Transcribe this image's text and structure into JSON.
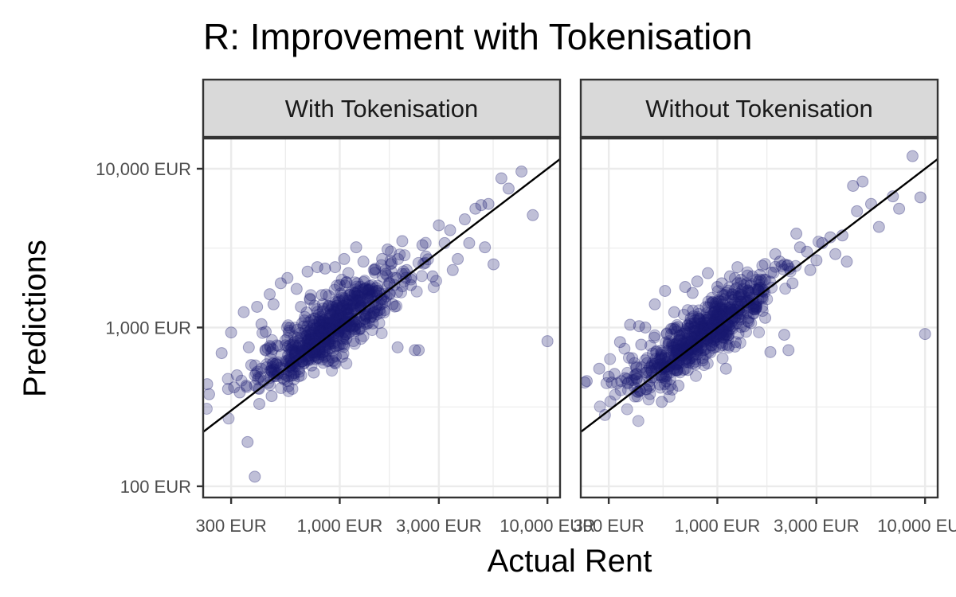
{
  "chart_data": {
    "type": "scatter",
    "title": "R: Improvement with Tokenisation",
    "xlabel": "Actual Rent",
    "ylabel": "Predictions",
    "scale": "log10",
    "xlim": [
      220,
      11500
    ],
    "ylim": [
      85,
      15500
    ],
    "x_ticks": [
      300,
      1000,
      3000,
      10000
    ],
    "x_tick_labels": [
      "300 EUR",
      "1,000 EUR",
      "3,000 EUR",
      "10,000 EUR"
    ],
    "y_ticks": [
      100,
      1000,
      10000
    ],
    "y_tick_labels": [
      "100 EUR",
      "1,000 EUR",
      "10,000 EUR"
    ],
    "reference_line": "y = x",
    "grid": true,
    "colors": {
      "point": "#191970",
      "line": "#000000",
      "strip": "#d9d9d9",
      "grid": "#ebebeb"
    },
    "panels": [
      {
        "name": "With Tokenisation",
        "points": [
          [
            230,
            440
          ],
          [
            235,
            380
          ],
          [
            270,
            690
          ],
          [
            290,
            410
          ],
          [
            300,
            930
          ],
          [
            310,
            420
          ],
          [
            320,
            500
          ],
          [
            330,
            390
          ],
          [
            345,
            1250
          ],
          [
            355,
            430
          ],
          [
            360,
            190
          ],
          [
            365,
            750
          ],
          [
            375,
            580
          ],
          [
            390,
            115
          ],
          [
            400,
            1350
          ],
          [
            410,
            330
          ],
          [
            420,
            1050
          ],
          [
            430,
            460
          ],
          [
            440,
            940
          ],
          [
            460,
            1620
          ],
          [
            470,
            370
          ],
          [
            480,
            1400
          ],
          [
            500,
            580
          ],
          [
            520,
            1900
          ],
          [
            540,
            470
          ],
          [
            560,
            2050
          ],
          [
            600,
            500
          ],
          [
            620,
            1750
          ],
          [
            650,
            1350
          ],
          [
            700,
            2250
          ],
          [
            720,
            1500
          ],
          [
            750,
            520
          ],
          [
            780,
            2400
          ],
          [
            820,
            1600
          ],
          [
            850,
            2350
          ],
          [
            880,
            780
          ],
          [
            950,
            2400
          ],
          [
            1000,
            1850
          ],
          [
            1050,
            2700
          ],
          [
            1100,
            2200
          ],
          [
            1150,
            1000
          ],
          [
            1200,
            3200
          ],
          [
            1300,
            2600
          ],
          [
            1400,
            1150
          ],
          [
            1500,
            1700
          ],
          [
            1600,
            2700
          ],
          [
            1700,
            3100
          ],
          [
            1800,
            1400
          ],
          [
            1900,
            750
          ],
          [
            2000,
            3500
          ],
          [
            2100,
            2300
          ],
          [
            2200,
            1850
          ],
          [
            2300,
            720
          ],
          [
            2400,
            720
          ],
          [
            2500,
            3300
          ],
          [
            2600,
            2800
          ],
          [
            2800,
            2100
          ],
          [
            3000,
            4400
          ],
          [
            3200,
            3400
          ],
          [
            3400,
            4100
          ],
          [
            3500,
            2300
          ],
          [
            3700,
            2700
          ],
          [
            4000,
            4800
          ],
          [
            4200,
            3400
          ],
          [
            4500,
            5600
          ],
          [
            4800,
            5900
          ],
          [
            5000,
            3200
          ],
          [
            5200,
            6000
          ],
          [
            5500,
            2500
          ],
          [
            6000,
            8700
          ],
          [
            6500,
            7500
          ],
          [
            7500,
            9600
          ],
          [
            8500,
            5100
          ],
          [
            10000,
            820
          ]
        ],
        "cloud_center": [
          900,
          1000
        ],
        "cloud_spread": [
          0.17,
          0.13
        ]
      },
      {
        "name": "Without Tokenisation",
        "points": [
          [
            230,
            450
          ],
          [
            235,
            460
          ],
          [
            270,
            550
          ],
          [
            300,
            490
          ],
          [
            310,
            450
          ],
          [
            320,
            510
          ],
          [
            340,
            810
          ],
          [
            360,
            480
          ],
          [
            380,
            1040
          ],
          [
            400,
            500
          ],
          [
            420,
            1020
          ],
          [
            430,
            780
          ],
          [
            450,
            1000
          ],
          [
            470,
            430
          ],
          [
            500,
            1400
          ],
          [
            520,
            580
          ],
          [
            540,
            340
          ],
          [
            560,
            1700
          ],
          [
            600,
            980
          ],
          [
            620,
            1250
          ],
          [
            650,
            430
          ],
          [
            700,
            1800
          ],
          [
            720,
            540
          ],
          [
            760,
            1650
          ],
          [
            800,
            1950
          ],
          [
            850,
            620
          ],
          [
            900,
            2200
          ],
          [
            950,
            1450
          ],
          [
            1000,
            1800
          ],
          [
            1050,
            1900
          ],
          [
            1100,
            550
          ],
          [
            1150,
            2100
          ],
          [
            1250,
            2400
          ],
          [
            1300,
            2000
          ],
          [
            1400,
            1100
          ],
          [
            1500,
            1350
          ],
          [
            1600,
            2150
          ],
          [
            1700,
            1150
          ],
          [
            1800,
            700
          ],
          [
            1900,
            2900
          ],
          [
            2000,
            2600
          ],
          [
            2100,
            900
          ],
          [
            2200,
            720
          ],
          [
            2300,
            1900
          ],
          [
            2400,
            3900
          ],
          [
            2500,
            3200
          ],
          [
            2700,
            3000
          ],
          [
            2800,
            2300
          ],
          [
            3000,
            2650
          ],
          [
            3200,
            3400
          ],
          [
            3500,
            3700
          ],
          [
            3700,
            2900
          ],
          [
            4000,
            3800
          ],
          [
            4200,
            2600
          ],
          [
            4500,
            7800
          ],
          [
            4700,
            5400
          ],
          [
            5000,
            8300
          ],
          [
            5500,
            6000
          ],
          [
            6000,
            4300
          ],
          [
            7000,
            6700
          ],
          [
            7500,
            5600
          ],
          [
            8700,
            12000
          ],
          [
            9500,
            6600
          ],
          [
            10000,
            910
          ]
        ],
        "cloud_center": [
          850,
          900
        ],
        "cloud_spread": [
          0.17,
          0.12
        ]
      }
    ]
  }
}
